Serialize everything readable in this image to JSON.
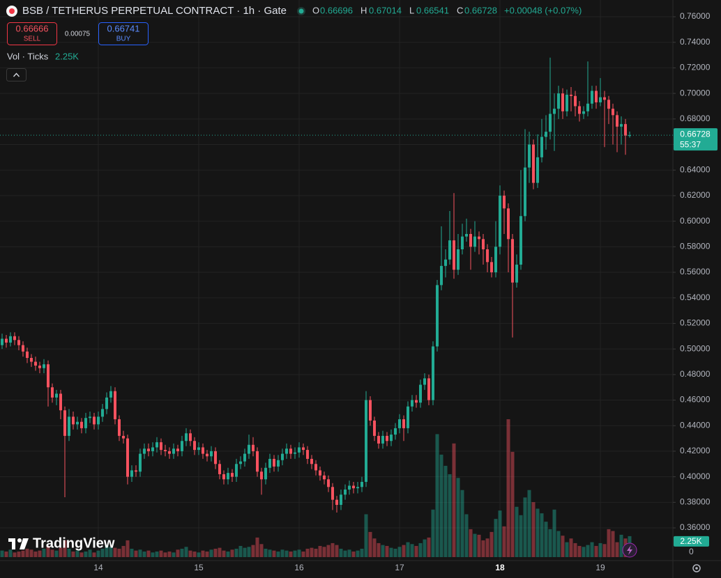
{
  "chart_data": {
    "type": "candlestick",
    "title": "BSB / TETHERUS PERPETUAL CONTRACT · 1h · Gate",
    "legend_labels": [
      "O",
      "H",
      "L",
      "C"
    ],
    "change": "+0.00048 (+0.07%)",
    "bid": 0.66666,
    "sell_label": "SELL",
    "spread": 0.00075,
    "ask": 0.66741,
    "buy_label": "BUY",
    "volume_title": "Vol · Ticks",
    "volume_label": "2.25K",
    "countdown": "55:37",
    "brand": "TradingView",
    "up_color": "#22ab94",
    "down_color": "#f7525f",
    "grid": true,
    "ylim": [
      0.3344,
      0.7731
    ],
    "yticks": [
      {
        "value": 0.36,
        "label": "0.36000"
      },
      {
        "value": 0.38,
        "label": "0.38000"
      },
      {
        "value": 0.4,
        "label": "0.40000"
      },
      {
        "value": 0.42,
        "label": "0.42000"
      },
      {
        "value": 0.44,
        "label": "0.44000"
      },
      {
        "value": 0.46,
        "label": "0.46000"
      },
      {
        "value": 0.48,
        "label": "0.48000"
      },
      {
        "value": 0.5,
        "label": "0.50000"
      },
      {
        "value": 0.52,
        "label": "0.52000"
      },
      {
        "value": 0.54,
        "label": "0.54000"
      },
      {
        "value": 0.56,
        "label": "0.56000"
      },
      {
        "value": 0.58,
        "label": "0.58000"
      },
      {
        "value": 0.6,
        "label": "0.60000"
      },
      {
        "value": 0.62,
        "label": "0.62000"
      },
      {
        "value": 0.64,
        "label": "0.64000"
      },
      {
        "value": 0.66,
        "label": "0.66000"
      },
      {
        "value": 0.68,
        "label": "0.68000"
      },
      {
        "value": 0.7,
        "label": "0.70000"
      },
      {
        "value": 0.72,
        "label": "0.72000"
      },
      {
        "value": 0.74,
        "label": "0.74000"
      },
      {
        "value": 0.76,
        "label": "0.76000"
      }
    ],
    "vticks": [
      0
    ],
    "categories": [
      null,
      null,
      null,
      null,
      null,
      null,
      null,
      null,
      null,
      null,
      null,
      null,
      null,
      null,
      null,
      null,
      null,
      null,
      null,
      null,
      null,
      null,
      null,
      "14",
      null,
      null,
      null,
      null,
      null,
      null,
      null,
      null,
      null,
      null,
      null,
      null,
      null,
      null,
      null,
      null,
      null,
      null,
      null,
      null,
      null,
      null,
      null,
      "15",
      null,
      null,
      null,
      null,
      null,
      null,
      null,
      null,
      null,
      null,
      null,
      null,
      null,
      null,
      null,
      null,
      null,
      null,
      null,
      null,
      null,
      null,
      null,
      "16",
      null,
      null,
      null,
      null,
      null,
      null,
      null,
      null,
      null,
      null,
      null,
      null,
      null,
      null,
      null,
      null,
      null,
      null,
      null,
      null,
      null,
      null,
      null,
      "17",
      null,
      null,
      null,
      null,
      null,
      null,
      null,
      null,
      null,
      null,
      null,
      null,
      null,
      null,
      null,
      null,
      null,
      null,
      null,
      null,
      null,
      null,
      null,
      "18",
      null,
      null,
      null,
      null,
      null,
      null,
      null,
      null,
      null,
      null,
      null,
      null,
      null,
      null,
      null,
      null,
      null,
      null,
      null,
      null,
      null,
      null,
      null,
      "19",
      null,
      null,
      null,
      null,
      null,
      null,
      null
    ],
    "open": [
      0.503,
      0.508,
      0.505,
      0.51,
      0.507,
      0.503,
      0.498,
      0.493,
      0.49,
      0.487,
      0.485,
      0.488,
      0.47,
      0.462,
      0.465,
      0.452,
      0.432,
      0.447,
      0.441,
      0.443,
      0.438,
      0.446,
      0.447,
      0.441,
      0.447,
      0.453,
      0.462,
      0.467,
      0.445,
      0.432,
      0.43,
      0.4,
      0.405,
      0.404,
      0.418,
      0.422,
      0.42,
      0.423,
      0.427,
      0.421,
      0.42,
      0.418,
      0.422,
      0.42,
      0.428,
      0.434,
      0.428,
      0.421,
      0.423,
      0.418,
      0.416,
      0.42,
      0.41,
      0.402,
      0.398,
      0.403,
      0.4,
      0.41,
      0.412,
      0.418,
      0.425,
      0.42,
      0.404,
      0.398,
      0.407,
      0.414,
      0.408,
      0.413,
      0.418,
      0.422,
      0.418,
      0.419,
      0.423,
      0.421,
      0.414,
      0.41,
      0.405,
      0.401,
      0.398,
      0.392,
      0.382,
      0.378,
      0.386,
      0.39,
      0.393,
      0.391,
      0.392,
      0.396,
      0.46,
      0.444,
      0.432,
      0.426,
      0.432,
      0.428,
      0.433,
      0.438,
      0.445,
      0.438,
      0.455,
      0.46,
      0.458,
      0.472,
      0.477,
      0.46,
      0.502,
      0.55,
      0.565,
      0.57,
      0.585,
      0.562,
      0.578,
      0.588,
      0.59,
      0.58,
      0.588,
      0.586,
      0.578,
      0.568,
      0.56,
      0.58,
      0.62,
      0.61,
      0.586,
      0.552,
      0.566,
      0.604,
      0.642,
      0.66,
      0.63,
      0.65,
      0.666,
      0.67,
      0.684,
      0.688,
      0.7,
      0.686,
      0.699,
      0.698,
      0.69,
      0.684,
      0.686,
      0.692,
      0.702,
      0.693,
      0.697,
      0.695,
      0.688,
      0.683,
      0.674,
      0.676,
      0.66696
    ],
    "high": [
      0.512,
      0.511,
      0.513,
      0.513,
      0.51,
      0.506,
      0.501,
      0.496,
      0.494,
      0.49,
      0.492,
      0.491,
      0.473,
      0.468,
      0.468,
      0.455,
      0.453,
      0.451,
      0.447,
      0.446,
      0.45,
      0.451,
      0.45,
      0.451,
      0.457,
      0.466,
      0.471,
      0.47,
      0.448,
      0.436,
      0.433,
      0.409,
      0.409,
      0.422,
      0.426,
      0.426,
      0.427,
      0.431,
      0.43,
      0.425,
      0.423,
      0.426,
      0.425,
      0.432,
      0.438,
      0.437,
      0.431,
      0.427,
      0.426,
      0.421,
      0.424,
      0.423,
      0.413,
      0.405,
      0.407,
      0.406,
      0.414,
      0.416,
      0.422,
      0.433,
      0.431,
      0.423,
      0.407,
      0.411,
      0.418,
      0.417,
      0.417,
      0.422,
      0.426,
      0.425,
      0.423,
      0.427,
      0.426,
      0.424,
      0.417,
      0.413,
      0.408,
      0.404,
      0.401,
      0.395,
      0.385,
      0.39,
      0.394,
      0.397,
      0.396,
      0.396,
      0.4,
      0.467,
      0.463,
      0.447,
      0.435,
      0.436,
      0.435,
      0.437,
      0.442,
      0.449,
      0.448,
      0.459,
      0.464,
      0.464,
      0.476,
      0.481,
      0.48,
      0.506,
      0.554,
      0.596,
      0.578,
      0.608,
      0.622,
      0.59,
      0.598,
      0.602,
      0.594,
      0.6,
      0.592,
      0.59,
      0.582,
      0.572,
      0.6,
      0.628,
      0.624,
      0.614,
      0.59,
      0.574,
      0.64,
      0.672,
      0.67,
      0.664,
      0.668,
      0.68,
      0.683,
      0.728,
      0.7,
      0.706,
      0.704,
      0.703,
      0.705,
      0.702,
      0.694,
      0.69,
      0.725,
      0.706,
      0.706,
      0.712,
      0.702,
      0.698,
      0.692,
      0.686,
      0.682,
      0.68,
      0.67014
    ],
    "low": [
      0.5,
      0.501,
      0.502,
      0.503,
      0.499,
      0.494,
      0.489,
      0.486,
      0.483,
      0.481,
      0.481,
      0.455,
      0.458,
      0.456,
      0.445,
      0.384,
      0.428,
      0.437,
      0.437,
      0.434,
      0.434,
      0.442,
      0.437,
      0.437,
      0.443,
      0.449,
      0.458,
      0.441,
      0.428,
      0.426,
      0.394,
      0.396,
      0.4,
      0.4,
      0.414,
      0.416,
      0.416,
      0.419,
      0.417,
      0.416,
      0.414,
      0.414,
      0.416,
      0.416,
      0.424,
      0.424,
      0.417,
      0.417,
      0.414,
      0.412,
      0.412,
      0.406,
      0.398,
      0.394,
      0.394,
      0.396,
      0.396,
      0.406,
      0.408,
      0.414,
      0.416,
      0.4,
      0.386,
      0.394,
      0.403,
      0.404,
      0.404,
      0.409,
      0.414,
      0.414,
      0.414,
      0.415,
      0.417,
      0.41,
      0.406,
      0.401,
      0.397,
      0.394,
      0.388,
      0.374,
      0.372,
      0.374,
      0.382,
      0.386,
      0.387,
      0.387,
      0.388,
      0.392,
      0.44,
      0.428,
      0.422,
      0.422,
      0.424,
      0.424,
      0.429,
      0.434,
      0.428,
      0.434,
      0.451,
      0.454,
      0.454,
      0.468,
      0.456,
      0.456,
      0.498,
      0.546,
      0.556,
      0.566,
      0.555,
      0.558,
      0.574,
      0.584,
      0.562,
      0.576,
      0.574,
      0.566,
      0.56,
      0.556,
      0.556,
      0.574,
      0.59,
      0.56,
      0.509,
      0.548,
      0.562,
      0.6,
      0.63,
      0.625,
      0.626,
      0.646,
      0.656,
      0.664,
      0.655,
      0.68,
      0.68,
      0.682,
      0.686,
      0.682,
      0.678,
      0.68,
      0.682,
      0.688,
      0.688,
      0.69,
      0.658,
      0.676,
      0.66,
      0.654,
      0.66,
      0.652,
      0.66541
    ],
    "close": [
      0.508,
      0.505,
      0.51,
      0.507,
      0.503,
      0.498,
      0.493,
      0.49,
      0.487,
      0.485,
      0.488,
      0.47,
      0.462,
      0.465,
      0.452,
      0.432,
      0.447,
      0.441,
      0.443,
      0.438,
      0.446,
      0.447,
      0.441,
      0.447,
      0.453,
      0.462,
      0.467,
      0.445,
      0.432,
      0.43,
      0.4,
      0.405,
      0.404,
      0.418,
      0.422,
      0.42,
      0.423,
      0.427,
      0.421,
      0.42,
      0.418,
      0.422,
      0.42,
      0.428,
      0.434,
      0.428,
      0.421,
      0.423,
      0.418,
      0.416,
      0.42,
      0.41,
      0.402,
      0.398,
      0.403,
      0.4,
      0.41,
      0.412,
      0.418,
      0.425,
      0.42,
      0.404,
      0.398,
      0.407,
      0.414,
      0.408,
      0.413,
      0.418,
      0.422,
      0.418,
      0.419,
      0.423,
      0.421,
      0.414,
      0.41,
      0.405,
      0.401,
      0.398,
      0.392,
      0.382,
      0.378,
      0.386,
      0.39,
      0.393,
      0.391,
      0.392,
      0.396,
      0.46,
      0.444,
      0.432,
      0.426,
      0.432,
      0.428,
      0.433,
      0.438,
      0.445,
      0.438,
      0.455,
      0.46,
      0.458,
      0.472,
      0.477,
      0.46,
      0.502,
      0.55,
      0.565,
      0.57,
      0.585,
      0.562,
      0.578,
      0.588,
      0.59,
      0.58,
      0.588,
      0.586,
      0.578,
      0.568,
      0.56,
      0.58,
      0.62,
      0.61,
      0.586,
      0.552,
      0.566,
      0.604,
      0.642,
      0.66,
      0.63,
      0.65,
      0.666,
      0.67,
      0.684,
      0.688,
      0.7,
      0.686,
      0.699,
      0.698,
      0.69,
      0.684,
      0.686,
      0.692,
      0.702,
      0.693,
      0.697,
      0.695,
      0.688,
      0.683,
      0.674,
      0.676,
      0.66696,
      0.66728
    ],
    "volume": [
      700,
      600,
      800,
      500,
      600,
      700,
      900,
      800,
      600,
      700,
      900,
      1200,
      800,
      700,
      1000,
      1800,
      900,
      600,
      700,
      500,
      600,
      800,
      500,
      700,
      900,
      1300,
      1100,
      1000,
      900,
      1200,
      1800,
      900,
      700,
      800,
      600,
      700,
      500,
      600,
      700,
      500,
      600,
      500,
      800,
      900,
      1100,
      700,
      600,
      500,
      700,
      600,
      800,
      900,
      1000,
      700,
      600,
      800,
      900,
      1200,
      1000,
      1100,
      1300,
      2100,
      1400,
      900,
      800,
      700,
      600,
      800,
      700,
      600,
      700,
      800,
      600,
      900,
      1000,
      900,
      1200,
      1100,
      1300,
      1500,
      1300,
      900,
      700,
      800,
      600,
      700,
      900,
      4600,
      2700,
      2000,
      1500,
      1300,
      1200,
      1000,
      900,
      1100,
      1300,
      1600,
      1400,
      1200,
      1500,
      1900,
      2100,
      5100,
      13200,
      11000,
      9800,
      8900,
      12200,
      8500,
      7200,
      4600,
      3000,
      2500,
      2400,
      1800,
      2000,
      2700,
      4100,
      5000,
      3300,
      14800,
      11300,
      5400,
      4500,
      6400,
      7200,
      5900,
      5200,
      4700,
      3800,
      3000,
      5100,
      2800,
      2300,
      1600,
      2000,
      1500,
      1200,
      1100,
      1300,
      1600,
      1200,
      1500,
      1400,
      3000,
      2800,
      1600,
      2400,
      2000,
      2250
    ]
  }
}
